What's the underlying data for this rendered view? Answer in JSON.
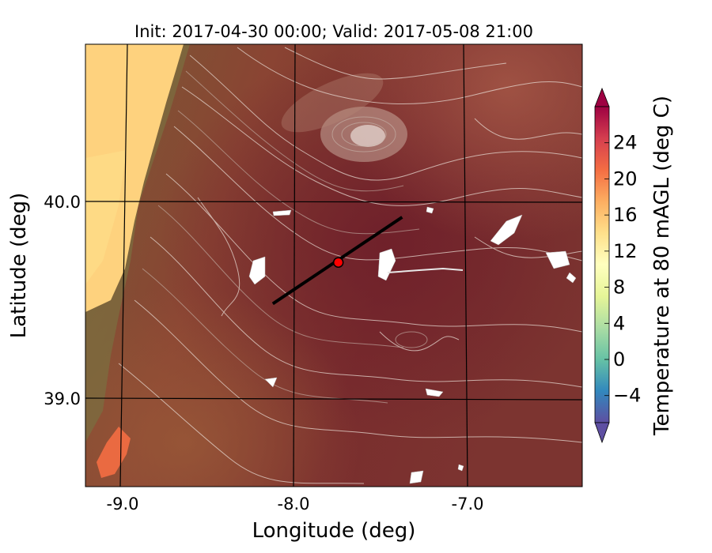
{
  "title": "Init: 2017-04-30 00:00; Valid: 2017-05-08 21:00",
  "axes": {
    "xlabel": "Longitude (deg)",
    "ylabel": "Latitude (deg)",
    "x_ticks": [
      "-9.0",
      "-8.0",
      "-7.0"
    ],
    "y_ticks": [
      "40.0",
      "39.0"
    ]
  },
  "colorbar": {
    "label": "Temperature at 80 mAGL (deg C)",
    "ticks": [
      "24",
      "20",
      "16",
      "12",
      "8",
      "4",
      "0",
      "−4"
    ]
  },
  "chart_data": {
    "type": "heatmap",
    "title": "Init: 2017-04-30 00:00; Valid: 2017-05-08 21:00",
    "xlabel": "Longitude (deg)",
    "ylabel": "Latitude (deg)",
    "xlim": [
      -9.25,
      -6.35
    ],
    "ylim": [
      38.55,
      40.8
    ],
    "x_ticks": [
      -9.0,
      -8.0,
      -7.0
    ],
    "y_ticks": [
      39.0,
      40.0
    ],
    "colorbar": {
      "label": "Temperature at 80 mAGL (deg C)",
      "range": [
        -7,
        28
      ],
      "ticks": [
        -4,
        0,
        4,
        8,
        12,
        16,
        20,
        24
      ],
      "extend": "both",
      "colormap": "Spectral_r"
    },
    "transect_line": {
      "start": {
        "lon": -8.12,
        "lat": 39.48
      },
      "end": {
        "lon": -7.37,
        "lat": 39.92
      }
    },
    "marker_point": {
      "lon": -7.74,
      "lat": 39.69,
      "color": "#ff0000"
    },
    "overlays": [
      "terrain contours (white/grey)",
      "lat/lon grid lines (black)"
    ]
  }
}
